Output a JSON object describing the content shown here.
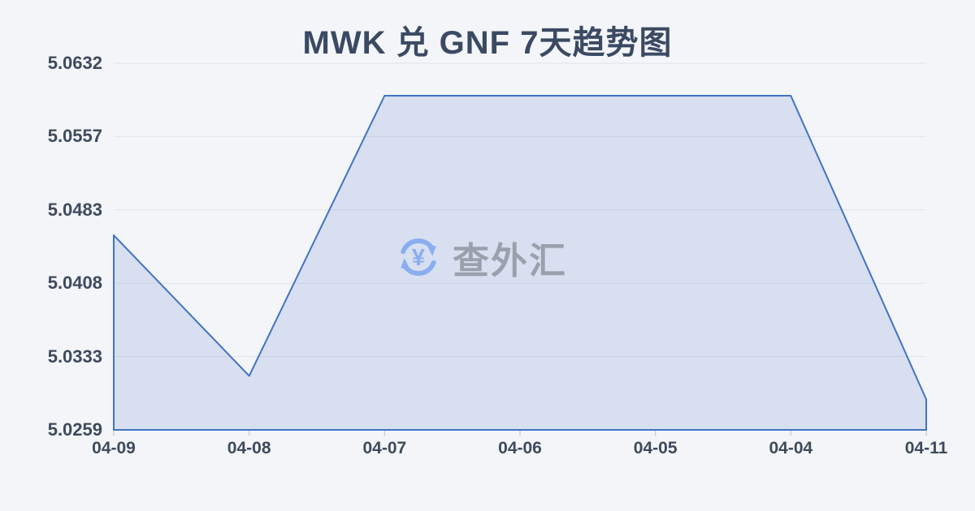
{
  "title": "MWK 兑 GNF 7天趋势图",
  "watermark": {
    "text": "查外汇",
    "icon": "currency-yuan-refresh-icon"
  },
  "colors": {
    "background": "#f3f5f8",
    "title_text": "#3b4a63",
    "axis_label_text": "#3e4a5d",
    "line": "#4273c3",
    "area_fill": "rgba(68,114,196,0.16)",
    "gridline": "#e2e4ea",
    "tick": "#c9cdd5",
    "watermark_icon": "#8aaeef",
    "watermark_text": "#9aa1ac"
  },
  "chart_data": {
    "type": "area",
    "title": "MWK 兑 GNF 7天趋势图",
    "categories": [
      "04-09",
      "04-08",
      "04-07",
      "04-06",
      "04-05",
      "04-04",
      "04-11"
    ],
    "values": [
      5.0457,
      5.0314,
      5.0599,
      5.0599,
      5.0599,
      5.0599,
      5.029
    ],
    "yticks": [
      "5.0632",
      "5.0557",
      "5.0483",
      "5.0408",
      "5.0333",
      "5.0259"
    ],
    "ylim": [
      5.0259,
      5.0632
    ],
    "xlabel": "",
    "ylabel": "",
    "grid": true,
    "legend_position": "none",
    "series_name": "MWK/GNF"
  }
}
